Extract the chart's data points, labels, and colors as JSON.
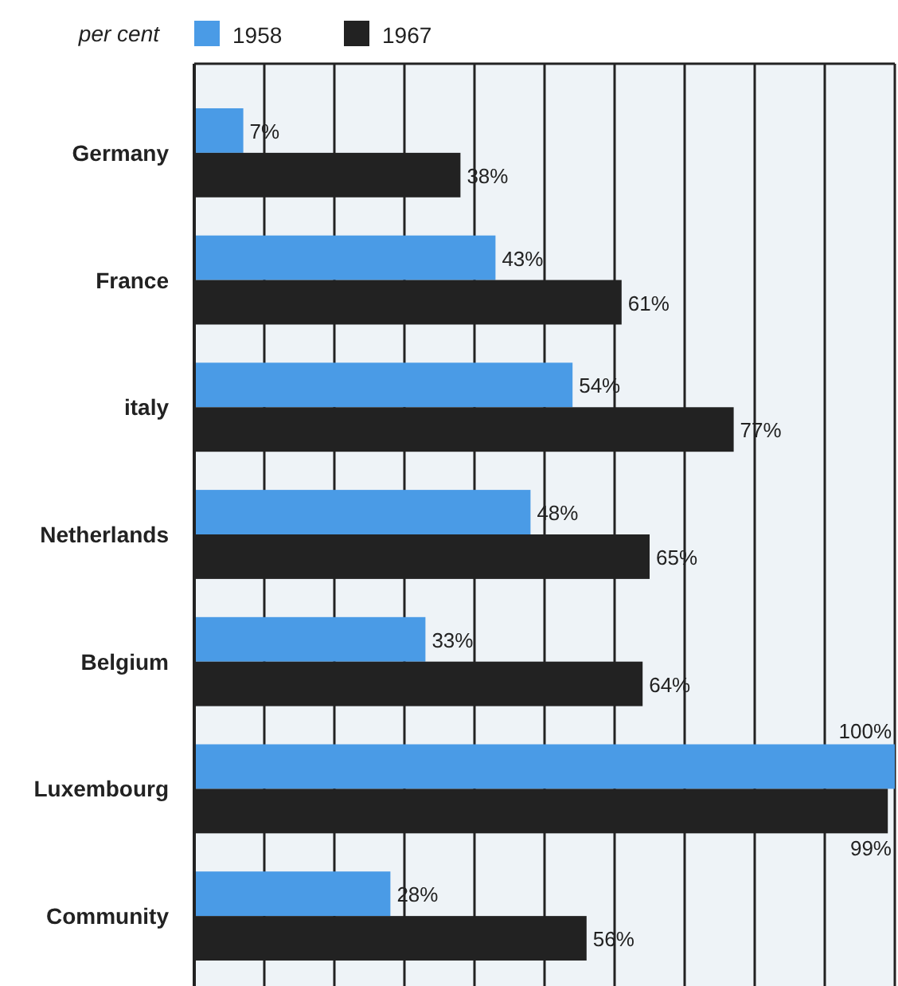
{
  "chart_data": {
    "type": "bar",
    "orientation": "horizontal",
    "ylabel": "per cent",
    "categories": [
      "Germany",
      "France",
      "italy",
      "Netherlands",
      "Belgium",
      "Luxembourg",
      "Community"
    ],
    "series": [
      {
        "name": "1958",
        "color": "#4a9be6",
        "values": [
          7,
          43,
          54,
          48,
          33,
          100,
          28
        ],
        "value_labels": [
          "7%",
          "43%",
          "54%",
          "48%",
          "33%",
          "100%",
          "28%"
        ]
      },
      {
        "name": "1967",
        "color": "#222222",
        "values": [
          38,
          61,
          77,
          65,
          64,
          99,
          56
        ],
        "value_labels": [
          "38%",
          "61%",
          "77%",
          "65%",
          "64%",
          "99%",
          "56%"
        ]
      }
    ],
    "xlim": [
      0,
      100
    ],
    "xticks": [
      {
        "value": 0,
        "label": null
      },
      {
        "value": 10,
        "label": null
      },
      {
        "value": 20,
        "label": null
      },
      {
        "value": 30,
        "label": null
      },
      {
        "value": 40,
        "label": null
      },
      {
        "value": 50,
        "label": null
      },
      {
        "value": 60,
        "label": null
      },
      {
        "value": 70,
        "label": null
      },
      {
        "value": 80,
        "label": null
      },
      {
        "value": 90,
        "label": null
      },
      {
        "value": 100,
        "label": null
      }
    ],
    "tick_labels": "y",
    "grid": "x",
    "legend": "top left"
  }
}
